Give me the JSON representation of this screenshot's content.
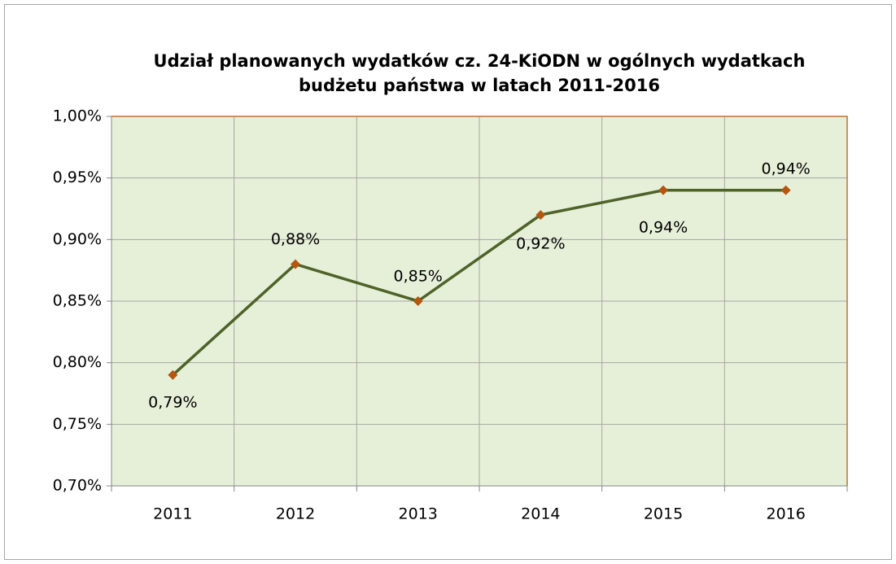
{
  "chart_data": {
    "type": "line",
    "title": [
      "Udział planowanych wydatków cz. 24-KiODN w ogólnych wydatkach",
      "budżetu państwa w latach 2011-2016"
    ],
    "categories": [
      "2011",
      "2012",
      "2013",
      "2014",
      "2015",
      "2016"
    ],
    "series": [
      {
        "color": "#4f6228",
        "marker_color": "#b5560f",
        "values": [
          0.79,
          0.88,
          0.85,
          0.92,
          0.94,
          0.94
        ],
        "value_labels": [
          "0,79%",
          "0,88%",
          "0,85%",
          "0,92%",
          "0,94%",
          "0,94%"
        ]
      }
    ],
    "ylim": [
      0.7,
      1.0
    ],
    "yticks": [
      {
        "value": 0.7,
        "label": "0,70%"
      },
      {
        "value": 0.75,
        "label": "0,75%"
      },
      {
        "value": 0.8,
        "label": "0,80%"
      },
      {
        "value": 0.85,
        "label": "0,85%"
      },
      {
        "value": 0.9,
        "label": "0,90%"
      },
      {
        "value": 0.95,
        "label": "0,95%"
      },
      {
        "value": 1.0,
        "label": "1,00%"
      }
    ],
    "grid": true
  }
}
